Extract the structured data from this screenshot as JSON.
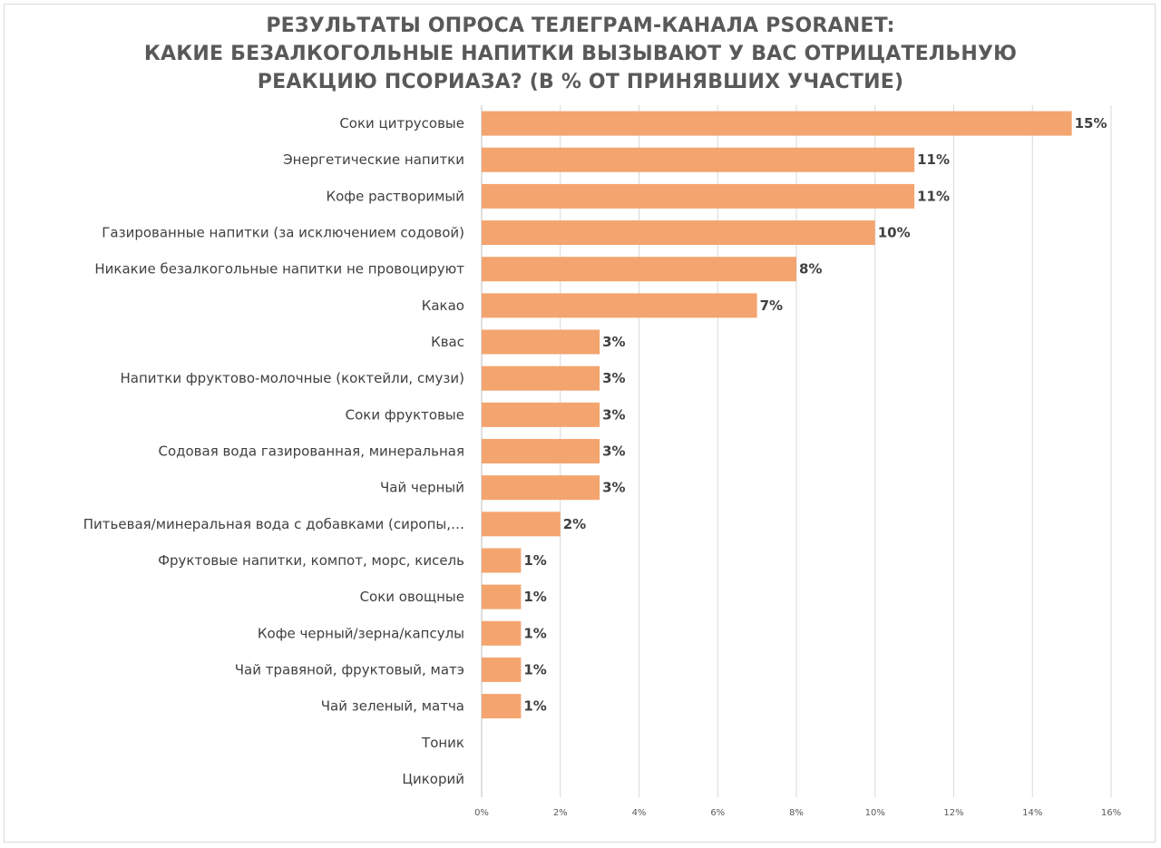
{
  "chart_data": {
    "type": "bar",
    "orientation": "horizontal",
    "title_lines": [
      "РЕЗУЛЬТАТЫ ОПРОСА ТЕЛЕГРАМ-КАНАЛА PSORANET:",
      "КАКИЕ БЕЗАЛКОГОЛЬНЫЕ НАПИТКИ ВЫЗЫВАЮТ У ВАС ОТРИЦАТЕЛЬНУЮ",
      "РЕАКЦИЮ ПСОРИАЗА? (В % ОТ ПРИНЯВШИХ УЧАСТИЕ)"
    ],
    "categories": [
      "Соки цитрусовые",
      "Энергетические напитки",
      "Кофе растворимый",
      "Газированные напитки (за исключением содовой)",
      "Никакие безалкогольные напитки не провоцируют",
      "Какао",
      "Квас",
      "Напитки фруктово-молочные (коктейли, смузи)",
      "Соки фруктовые",
      "Содовая вода газированная, минеральная",
      "Чай черный",
      "Питьевая/минеральная  вода с добавками (сиропы,…",
      "Фруктовые напитки, компот, морс, кисель",
      "Соки овощные",
      "Кофе черный/зерна/капсулы",
      "Чай травяной, фруктовый, матэ",
      "Чай зеленый, матча",
      "Тоник",
      "Цикорий"
    ],
    "values": [
      15,
      11,
      11,
      10,
      8,
      7,
      3,
      3,
      3,
      3,
      3,
      2,
      1,
      1,
      1,
      1,
      1,
      0,
      0
    ],
    "data_labels": [
      "15%",
      "11%",
      "11%",
      "10%",
      "8%",
      "7%",
      "3%",
      "3%",
      "3%",
      "3%",
      "3%",
      "2%",
      "1%",
      "1%",
      "1%",
      "1%",
      "1%",
      "",
      ""
    ],
    "x_ticks": [
      "0%",
      "2%",
      "4%",
      "6%",
      "8%",
      "10%",
      "12%",
      "14%",
      "16%"
    ],
    "xlim": [
      0,
      16
    ],
    "grid": "vertical",
    "legend": "none",
    "colors": {
      "bar": "#F4A46E",
      "grid": "#d9d9d9",
      "axis": "#bfbfbf",
      "title": "#595959",
      "label": "#404040"
    }
  }
}
